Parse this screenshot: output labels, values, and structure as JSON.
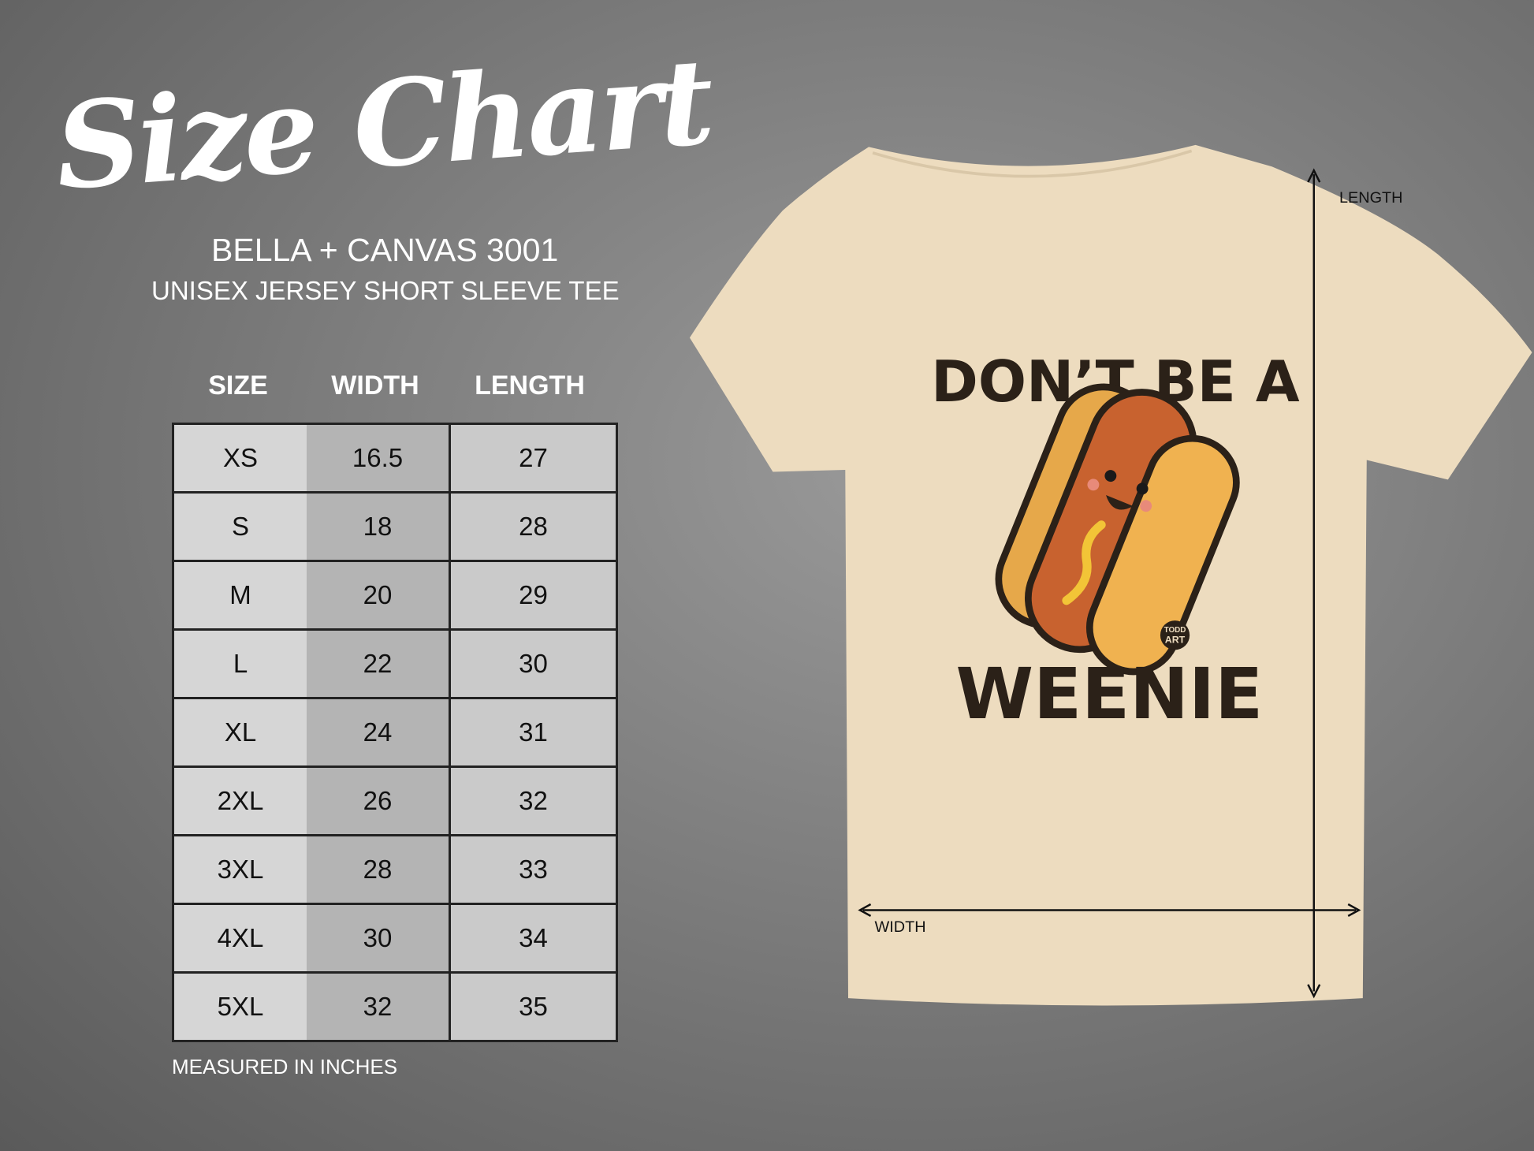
{
  "title": "Size Chart",
  "brand": "BELLA + CANVAS 3001",
  "style": "UNISEX JERSEY SHORT SLEEVE TEE",
  "table": {
    "headers": [
      "SIZE",
      "WIDTH",
      "LENGTH"
    ],
    "rows": [
      [
        "XS",
        "16.5",
        "27"
      ],
      [
        "S",
        "18",
        "28"
      ],
      [
        "M",
        "20",
        "29"
      ],
      [
        "L",
        "22",
        "30"
      ],
      [
        "XL",
        "24",
        "31"
      ],
      [
        "2XL",
        "26",
        "32"
      ],
      [
        "3XL",
        "28",
        "33"
      ],
      [
        "4XL",
        "30",
        "34"
      ],
      [
        "5XL",
        "32",
        "35"
      ]
    ]
  },
  "footnote": "MEASURED IN INCHES",
  "tee": {
    "color": "#eddcbf",
    "print_line1": "DON’T BE A",
    "print_line2": "WEENIE",
    "logo_line1": "TODD",
    "logo_line2": "ART",
    "length_label": "LENGTH",
    "width_label": "WIDTH"
  }
}
